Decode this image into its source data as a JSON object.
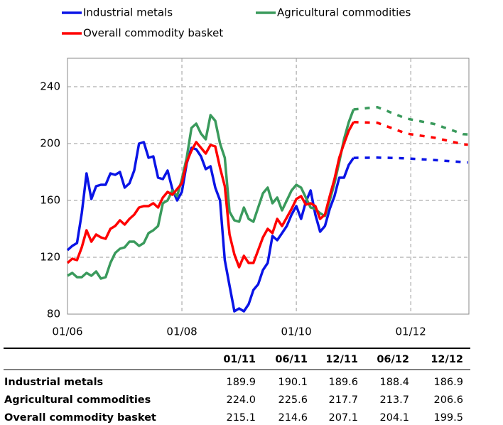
{
  "chart_data": {
    "type": "line",
    "categories": [
      "01/06",
      null,
      null,
      null,
      null,
      null,
      null,
      null,
      null,
      null,
      null,
      null,
      null,
      null,
      null,
      null,
      null,
      null,
      null,
      null,
      null,
      null,
      null,
      null,
      "01/08",
      null,
      null,
      null,
      null,
      null,
      null,
      null,
      null,
      null,
      null,
      null,
      null,
      null,
      null,
      null,
      null,
      null,
      null,
      null,
      null,
      null,
      null,
      null,
      "01/10",
      null,
      null,
      null,
      null,
      null,
      null,
      null,
      null,
      null,
      null,
      null,
      null,
      null,
      null,
      null,
      null,
      null,
      null,
      null,
      null,
      null,
      null,
      null,
      "01/12",
      null,
      null,
      null,
      null,
      null,
      null,
      null,
      null,
      null,
      null,
      null,
      null
    ],
    "ylim": [
      80,
      260
    ],
    "yticks": [
      80,
      120,
      160,
      200,
      240
    ],
    "grid": true,
    "series": [
      {
        "name": "Industrial metals",
        "color": "#0a14e6",
        "values": [
          125,
          128,
          130,
          151,
          179,
          161,
          170,
          171,
          171,
          179,
          178,
          180,
          169,
          172,
          181,
          200,
          201,
          190,
          191,
          176,
          175,
          181,
          168,
          160,
          166,
          186,
          197,
          196,
          191,
          182,
          184,
          169,
          160,
          118,
          100,
          82,
          84,
          82,
          87,
          97,
          101,
          111,
          116,
          135,
          132,
          137,
          142,
          150,
          156,
          147,
          159,
          167,
          150,
          138,
          142,
          154,
          163,
          176,
          176,
          185,
          189.9,
          null,
          null,
          null,
          null,
          null,
          null,
          null,
          null,
          null,
          null,
          null,
          null,
          null,
          null,
          null,
          null,
          null,
          null,
          null,
          null,
          null,
          null,
          null,
          null
        ],
        "forecast": [
          null,
          null,
          null,
          null,
          null,
          null,
          null,
          null,
          null,
          null,
          null,
          null,
          null,
          null,
          null,
          null,
          null,
          null,
          null,
          null,
          null,
          null,
          null,
          null,
          null,
          null,
          null,
          null,
          null,
          null,
          null,
          null,
          null,
          null,
          null,
          null,
          null,
          null,
          null,
          null,
          null,
          null,
          null,
          null,
          null,
          null,
          null,
          null,
          null,
          null,
          null,
          null,
          null,
          null,
          null,
          null,
          null,
          null,
          null,
          null,
          189.9,
          190.0,
          190.0,
          190.0,
          190.1,
          190.1,
          190.0,
          190.0,
          189.9,
          189.8,
          189.7,
          189.6,
          189.4,
          189.2,
          189.0,
          188.8,
          188.6,
          188.4,
          188.2,
          187.9,
          187.7,
          187.4,
          187.2,
          186.9,
          186.7
        ]
      },
      {
        "name": "Agricultural commodities",
        "color": "#3a9a5c",
        "values": [
          107,
          109,
          106,
          106,
          109,
          107,
          110,
          105,
          106,
          116,
          123,
          126,
          127,
          131,
          131,
          128,
          130,
          137,
          139,
          142,
          158,
          160,
          167,
          163,
          175,
          190,
          211,
          214,
          207,
          203,
          220,
          216,
          200,
          190,
          152,
          146,
          145,
          155,
          147,
          145,
          155,
          165,
          169,
          158,
          162,
          153,
          160,
          167,
          171,
          169,
          162,
          155,
          154,
          151,
          149,
          160,
          172,
          187,
          203,
          215,
          224.0,
          null,
          null,
          null,
          null,
          null,
          null,
          null,
          null,
          null,
          null,
          null,
          null,
          null,
          null,
          null,
          null,
          null,
          null,
          null,
          null,
          null,
          null,
          null,
          null
        ],
        "forecast": [
          null,
          null,
          null,
          null,
          null,
          null,
          null,
          null,
          null,
          null,
          null,
          null,
          null,
          null,
          null,
          null,
          null,
          null,
          null,
          null,
          null,
          null,
          null,
          null,
          null,
          null,
          null,
          null,
          null,
          null,
          null,
          null,
          null,
          null,
          null,
          null,
          null,
          null,
          null,
          null,
          null,
          null,
          null,
          null,
          null,
          null,
          null,
          null,
          null,
          null,
          null,
          null,
          null,
          null,
          null,
          null,
          null,
          null,
          null,
          null,
          224.0,
          224.3,
          224.6,
          225.0,
          225.3,
          225.6,
          224.3,
          223.0,
          221.6,
          220.3,
          219.0,
          217.7,
          217.0,
          216.4,
          215.7,
          215.0,
          214.4,
          213.7,
          212.5,
          211.3,
          210.2,
          209.0,
          207.8,
          206.6,
          206.4
        ]
      },
      {
        "name": "Overall commodity basket",
        "color": "#ff0000",
        "values": [
          116,
          119,
          118,
          127,
          139,
          131,
          136,
          134,
          133,
          140,
          142,
          146,
          143,
          147,
          150,
          155,
          156,
          156,
          158,
          155,
          162,
          166,
          164,
          168,
          172,
          187,
          195,
          201,
          197,
          193,
          199,
          198,
          183,
          170,
          136,
          122,
          113,
          121,
          116,
          116,
          125,
          134,
          140,
          137,
          147,
          142,
          148,
          154,
          161,
          163,
          157,
          158,
          156,
          147,
          150,
          163,
          175,
          190,
          200,
          209,
          215.1,
          null,
          null,
          null,
          null,
          null,
          null,
          null,
          null,
          null,
          null,
          null,
          null,
          null,
          null,
          null,
          null,
          null,
          null,
          null,
          null,
          null,
          null,
          null,
          null
        ],
        "forecast": [
          null,
          null,
          null,
          null,
          null,
          null,
          null,
          null,
          null,
          null,
          null,
          null,
          null,
          null,
          null,
          null,
          null,
          null,
          null,
          null,
          null,
          null,
          null,
          null,
          null,
          null,
          null,
          null,
          null,
          null,
          null,
          null,
          null,
          null,
          null,
          null,
          null,
          null,
          null,
          null,
          null,
          null,
          null,
          null,
          null,
          null,
          null,
          null,
          null,
          null,
          null,
          null,
          null,
          null,
          null,
          null,
          null,
          null,
          null,
          null,
          215.1,
          215.0,
          214.9,
          214.8,
          214.7,
          214.6,
          213.4,
          212.1,
          210.9,
          209.6,
          208.4,
          207.1,
          206.6,
          206.1,
          205.6,
          205.1,
          204.6,
          204.1,
          203.3,
          202.6,
          201.8,
          201.0,
          200.3,
          199.5,
          199.2
        ]
      }
    ]
  },
  "table": {
    "columns": [
      "01/11",
      "06/11",
      "12/11",
      "06/12",
      "12/12"
    ],
    "rows": [
      {
        "label": "Industrial metals",
        "values": [
          "189.9",
          "190.1",
          "189.6",
          "188.4",
          "186.9"
        ]
      },
      {
        "label": "Agricultural commodities",
        "values": [
          "224.0",
          "225.6",
          "217.7",
          "213.7",
          "206.6"
        ]
      },
      {
        "label": "Overall commodity basket",
        "values": [
          "215.1",
          "214.6",
          "207.1",
          "204.1",
          "199.5"
        ]
      }
    ]
  }
}
